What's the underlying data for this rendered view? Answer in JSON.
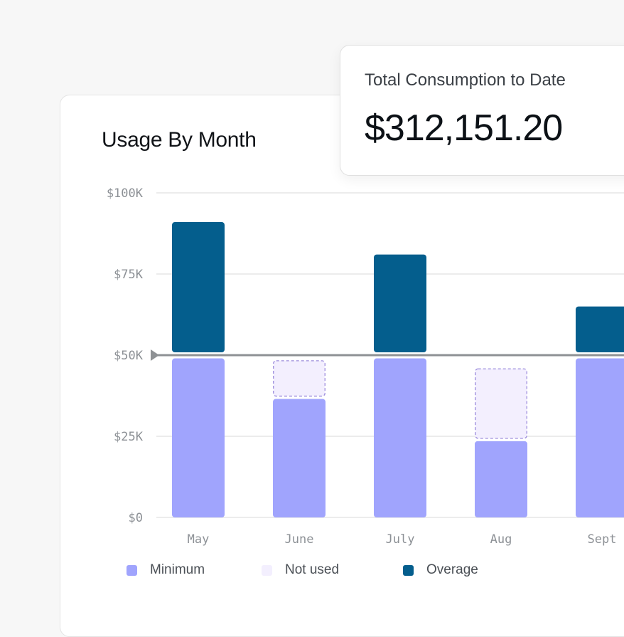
{
  "card": {
    "title": "Usage By Month"
  },
  "summary": {
    "label": "Total Consumption to Date",
    "value": "$312,151.20"
  },
  "colors": {
    "minimum": "#a0a4fd",
    "not_used_fill": "#f3effe",
    "not_used_border": "#9b8bdc",
    "overage": "#045e8d",
    "threshold": "#8e9194",
    "grid": "#e6e6e6"
  },
  "legend": [
    {
      "key": "minimum",
      "label": "Minimum"
    },
    {
      "key": "not_used",
      "label": "Not used"
    },
    {
      "key": "overage",
      "label": "Overage"
    }
  ],
  "chart_data": {
    "type": "bar",
    "stacked": true,
    "title": "Usage By Month",
    "categories": [
      "May",
      "June",
      "July",
      "Aug",
      "Sept"
    ],
    "y_tick_labels": [
      "$0",
      "$25K",
      "$50K",
      "$75K",
      "$100K"
    ],
    "y_ticks": [
      0,
      25000,
      50000,
      75000,
      100000
    ],
    "ylim": [
      0,
      100000
    ],
    "threshold": 50000,
    "grid": true,
    "legend_position": "bottom-left",
    "series": [
      {
        "name": "Minimum",
        "key": "minimum",
        "values": [
          49000,
          36500,
          49000,
          23500,
          49000
        ]
      },
      {
        "name": "Not used",
        "key": "not_used",
        "values": [
          0,
          12000,
          0,
          22500,
          0
        ]
      },
      {
        "name": "Overage",
        "key": "overage",
        "values": [
          41000,
          0,
          31000,
          0,
          15000
        ]
      }
    ]
  }
}
